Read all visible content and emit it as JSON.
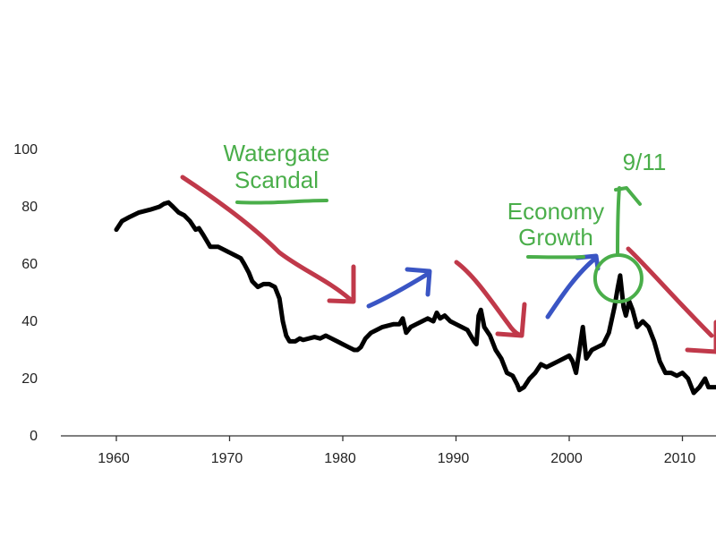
{
  "chart_data": {
    "type": "line",
    "title": "",
    "xlabel": "",
    "ylabel": "",
    "xlim": [
      1955,
      2013
    ],
    "ylim": [
      0,
      100
    ],
    "xticks": [
      1960,
      1970,
      1980,
      1990,
      2000,
      2010
    ],
    "yticks": [
      0,
      20,
      40,
      60,
      80,
      100
    ],
    "grid": false,
    "series": [
      {
        "color": "#000000",
        "points": [
          [
            1960.0,
            72
          ],
          [
            1960.5,
            75
          ],
          [
            1961.2,
            76.5
          ],
          [
            1962.0,
            78
          ],
          [
            1963.0,
            79
          ],
          [
            1963.8,
            80
          ],
          [
            1964.2,
            81
          ],
          [
            1964.6,
            81.5
          ],
          [
            1965.0,
            80
          ],
          [
            1965.5,
            78
          ],
          [
            1966.0,
            77
          ],
          [
            1966.5,
            75
          ],
          [
            1967.0,
            72
          ],
          [
            1967.3,
            72.5
          ],
          [
            1967.7,
            70
          ],
          [
            1968.0,
            68
          ],
          [
            1968.3,
            66
          ],
          [
            1969.0,
            66
          ],
          [
            1970.0,
            64
          ],
          [
            1970.5,
            63
          ],
          [
            1971.0,
            62
          ],
          [
            1971.3,
            60
          ],
          [
            1971.7,
            57
          ],
          [
            1972.0,
            54
          ],
          [
            1972.5,
            52
          ],
          [
            1973.0,
            53
          ],
          [
            1973.5,
            53
          ],
          [
            1974.0,
            52
          ],
          [
            1974.4,
            48
          ],
          [
            1974.7,
            40
          ],
          [
            1975.0,
            35
          ],
          [
            1975.3,
            33
          ],
          [
            1975.8,
            33
          ],
          [
            1976.2,
            34
          ],
          [
            1976.5,
            33.5
          ],
          [
            1977.0,
            34
          ],
          [
            1977.5,
            34.5
          ],
          [
            1978.0,
            34
          ],
          [
            1978.5,
            35
          ],
          [
            1979.0,
            34
          ],
          [
            1979.5,
            33
          ],
          [
            1980.0,
            32
          ],
          [
            1980.5,
            31
          ],
          [
            1981.0,
            30
          ],
          [
            1981.3,
            30
          ],
          [
            1981.6,
            31
          ],
          [
            1982.0,
            34
          ],
          [
            1982.5,
            36
          ],
          [
            1983.0,
            37
          ],
          [
            1983.5,
            38
          ],
          [
            1984.0,
            38.5
          ],
          [
            1984.5,
            39
          ],
          [
            1985.0,
            39
          ],
          [
            1985.3,
            41
          ],
          [
            1985.6,
            36
          ],
          [
            1986.0,
            38
          ],
          [
            1986.5,
            39
          ],
          [
            1987.0,
            40
          ],
          [
            1987.5,
            41
          ],
          [
            1988.0,
            40
          ],
          [
            1988.3,
            43
          ],
          [
            1988.6,
            41
          ],
          [
            1989.0,
            42
          ],
          [
            1989.5,
            40
          ],
          [
            1990.0,
            39
          ],
          [
            1990.5,
            38
          ],
          [
            1991.0,
            37
          ],
          [
            1991.3,
            35
          ],
          [
            1991.6,
            33
          ],
          [
            1991.8,
            32
          ],
          [
            1992.0,
            42
          ],
          [
            1992.2,
            44
          ],
          [
            1992.5,
            38
          ],
          [
            1993.0,
            35
          ],
          [
            1993.5,
            30
          ],
          [
            1994.0,
            27
          ],
          [
            1994.5,
            22
          ],
          [
            1995.0,
            21
          ],
          [
            1995.4,
            18
          ],
          [
            1995.6,
            16
          ],
          [
            1996.0,
            17
          ],
          [
            1996.5,
            20
          ],
          [
            1997.0,
            22
          ],
          [
            1997.5,
            25
          ],
          [
            1998.0,
            24
          ],
          [
            1998.5,
            25
          ],
          [
            1999.0,
            26
          ],
          [
            1999.5,
            27
          ],
          [
            2000.0,
            28
          ],
          [
            2000.3,
            26
          ],
          [
            2000.6,
            22
          ],
          [
            2000.9,
            30
          ],
          [
            2001.2,
            38
          ],
          [
            2001.5,
            27
          ],
          [
            2002.0,
            30
          ],
          [
            2002.5,
            31
          ],
          [
            2003.0,
            32
          ],
          [
            2003.5,
            36
          ],
          [
            2004.0,
            45
          ],
          [
            2004.3,
            52
          ],
          [
            2004.5,
            56
          ],
          [
            2004.8,
            45
          ],
          [
            2005.0,
            42
          ],
          [
            2005.3,
            47
          ],
          [
            2005.6,
            44
          ],
          [
            2006.0,
            38
          ],
          [
            2006.5,
            40
          ],
          [
            2007.0,
            38
          ],
          [
            2007.5,
            33
          ],
          [
            2008.0,
            26
          ],
          [
            2008.5,
            22
          ],
          [
            2009.0,
            22
          ],
          [
            2009.5,
            21
          ],
          [
            2010.0,
            22
          ],
          [
            2010.5,
            20
          ],
          [
            2011.0,
            15
          ],
          [
            2011.5,
            17
          ],
          [
            2012.0,
            20
          ],
          [
            2012.3,
            17
          ],
          [
            2013.0,
            17
          ]
        ]
      }
    ],
    "annotations": [
      {
        "label": "Watergate",
        "color": "#4aae4a"
      },
      {
        "label": "Scandal",
        "color": "#4aae4a"
      },
      {
        "label": "Economy",
        "color": "#4aae4a"
      },
      {
        "label": "Growth",
        "color": "#4aae4a"
      },
      {
        "label": "9/11",
        "color": "#4aae4a"
      }
    ],
    "arrows": [
      {
        "direction": "down",
        "color": "#c0394a",
        "from_year": 1966,
        "to_year": 1981
      },
      {
        "direction": "up",
        "color": "#3a55c4",
        "from_year": 1983,
        "to_year": 1988
      },
      {
        "direction": "down",
        "color": "#c0394a",
        "from_year": 1990,
        "to_year": 1996
      },
      {
        "direction": "up",
        "color": "#3a55c4",
        "from_year": 1998,
        "to_year": 2003
      },
      {
        "direction": "down",
        "color": "#c0394a",
        "from_year": 2005,
        "to_year": 2013
      }
    ],
    "highlight_circle": {
      "year": 2004.5,
      "color": "#4aae4a"
    }
  }
}
